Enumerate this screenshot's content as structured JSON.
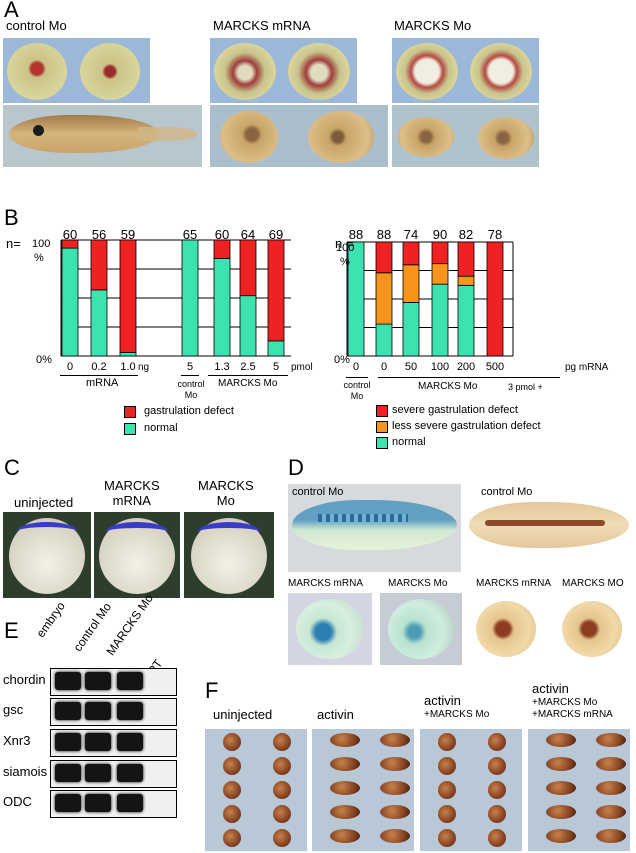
{
  "panels": {
    "A": "A",
    "B": "B",
    "C": "C",
    "D": "D",
    "E": "E",
    "F": "F"
  },
  "panelA": {
    "labels": [
      "control Mo",
      "MARCKS mRNA",
      "MARCKS Mo"
    ]
  },
  "panelB": {
    "left_n_prefix": "n=",
    "right_n_prefix": "n =",
    "y_top": "100",
    "y_pct": "%",
    "y_zero": "0%",
    "left_group_labels": {
      "mrna": "mRNA",
      "control": "control Mo",
      "marcks": "MARCKS Mo"
    },
    "right_group_labels": {
      "control": "control Mo",
      "marcks": "MARCKS Mo",
      "pmol": "3 pmol +",
      "unit": "pg mRNA"
    },
    "left_units": {
      "mrna": "ng",
      "mo": "pmol"
    },
    "legend_left": [
      "gastrulation defect",
      "normal"
    ],
    "legend_right": [
      "severe gastrulation defect",
      "less severe gastrulation defect",
      "normal"
    ]
  },
  "colors": {
    "red": "#ee2222",
    "orange": "#f7941d",
    "teal": "#3ce2b0"
  },
  "chart_data": [
    {
      "type": "bar",
      "stacked": true,
      "categories": [
        "0",
        "0.2",
        "1.0",
        "5",
        "1.3",
        "2.5",
        "5"
      ],
      "n": [
        60,
        56,
        59,
        65,
        60,
        64,
        69
      ],
      "series": [
        {
          "name": "normal",
          "values": [
            93,
            57,
            3,
            100,
            84,
            52,
            13
          ]
        },
        {
          "name": "gastrulation defect",
          "values": [
            7,
            43,
            97,
            0,
            16,
            48,
            87
          ]
        }
      ],
      "ylim": [
        0,
        100
      ]
    },
    {
      "type": "bar",
      "stacked": true,
      "categories": [
        "0",
        "0",
        "50",
        "100",
        "200",
        "500"
      ],
      "n": [
        88,
        88,
        74,
        90,
        82,
        78
      ],
      "series": [
        {
          "name": "normal",
          "values": [
            100,
            28,
            47,
            63,
            62,
            0
          ]
        },
        {
          "name": "less severe gastrulation defect",
          "values": [
            0,
            45,
            33,
            18,
            8,
            0
          ]
        },
        {
          "name": "severe gastrulation defect",
          "values": [
            0,
            27,
            20,
            19,
            30,
            100
          ]
        }
      ],
      "ylim": [
        0,
        100
      ]
    }
  ],
  "panelC": {
    "labels": [
      "uninjected",
      "MARCKS\nmRNA",
      "MARCKS\nMo"
    ]
  },
  "panelD": {
    "labels": [
      "control Mo",
      "control Mo",
      "MARCKS mRNA",
      "MARCKS Mo",
      "MARCKS mRNA",
      "MARCKS MO"
    ]
  },
  "panelE": {
    "columns": [
      "embryo",
      "control Mo",
      "MARCKS Mo",
      "-RT"
    ],
    "rows": [
      "chordin",
      "gsc",
      "Xnr3",
      "siamois",
      "ODC"
    ]
  },
  "panelF": {
    "labels": [
      "uninjected",
      "activin",
      "activin",
      "+MARCKS Mo",
      "activin",
      "+MARCKS Mo",
      "+MARCKS mRNA"
    ]
  }
}
